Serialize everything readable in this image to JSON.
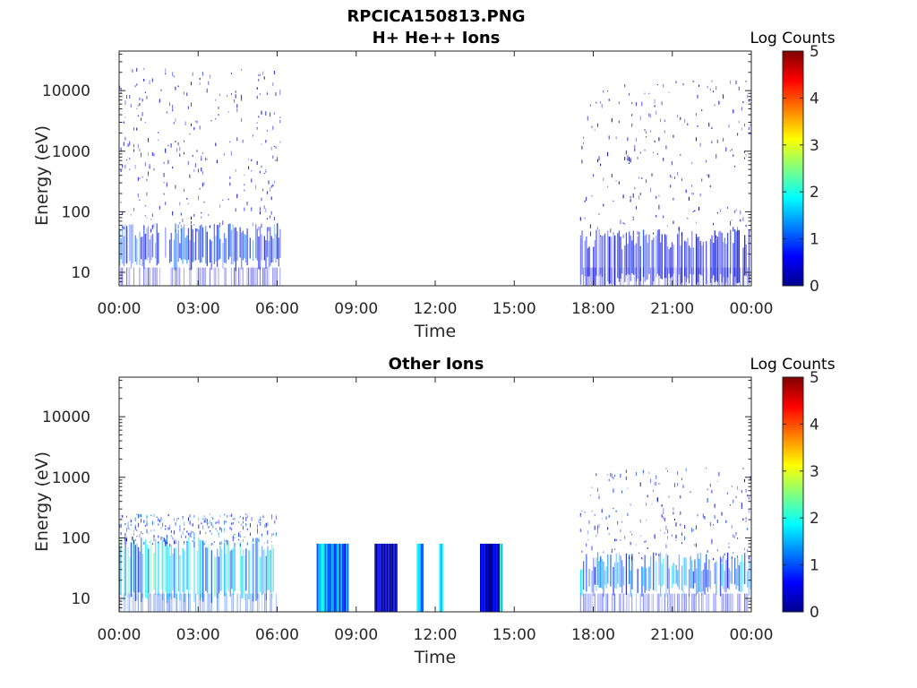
{
  "figure_title": "RPCICA150813.PNG",
  "chart_data": [
    {
      "type": "heatmap",
      "title": "H+ He++ Ions",
      "xlabel": "Time",
      "ylabel": "Energy (eV)",
      "x_ticks": [
        "00:00",
        "03:00",
        "06:00",
        "09:00",
        "12:00",
        "15:00",
        "18:00",
        "21:00",
        "00:00"
      ],
      "x_range_hours": [
        0,
        24
      ],
      "y_scale": "log",
      "y_ticks": [
        "10",
        "100",
        "1000",
        "10000"
      ],
      "y_tick_values": [
        10,
        100,
        1000,
        10000
      ],
      "ylim": [
        6,
        45000
      ],
      "colorbar": {
        "label": "Log Counts",
        "ticks": [
          "0",
          "1",
          "2",
          "3",
          "4",
          "5"
        ],
        "range": [
          0,
          5
        ],
        "colormap": "jet"
      },
      "segments": [
        {
          "start_h": 0.0,
          "end_h": 6.15,
          "emax": 25000,
          "level": 0.4,
          "density": 0.55,
          "low_band": [
            15,
            50
          ],
          "low_level": 0.9
        },
        {
          "start_h": 17.5,
          "end_h": 24.0,
          "emax": 15000,
          "level": 0.25,
          "density": 0.35,
          "low_band": [
            8,
            40
          ],
          "low_level": 0.6
        }
      ]
    },
    {
      "type": "heatmap",
      "title": "Other Ions",
      "xlabel": "Time",
      "ylabel": "Energy (eV)",
      "x_ticks": [
        "00:00",
        "03:00",
        "06:00",
        "09:00",
        "12:00",
        "15:00",
        "18:00",
        "21:00",
        "00:00"
      ],
      "x_range_hours": [
        0,
        24
      ],
      "y_scale": "log",
      "y_ticks": [
        "10",
        "100",
        "1000",
        "10000"
      ],
      "y_tick_values": [
        10,
        100,
        1000,
        10000
      ],
      "ylim": [
        6,
        45000
      ],
      "colorbar": {
        "label": "Log Counts",
        "ticks": [
          "0",
          "1",
          "2",
          "3",
          "4",
          "5"
        ],
        "range": [
          0,
          5
        ],
        "colormap": "jet"
      },
      "segments": [
        {
          "start_h": 0.0,
          "end_h": 6.0,
          "emax": 250,
          "level": 0.7,
          "density": 0.5,
          "low_band": [
            12,
            80
          ],
          "low_level": 1.6
        },
        {
          "start_h": 17.5,
          "end_h": 24.0,
          "emax": 1500,
          "level": 0.5,
          "density": 0.35,
          "low_band": [
            15,
            45
          ],
          "low_level": 1.2
        }
      ],
      "blocks": [
        {
          "start_h": 7.5,
          "end_h": 8.1,
          "emin": 6,
          "emax": 80,
          "level": 1.5
        },
        {
          "start_h": 8.1,
          "end_h": 8.7,
          "emin": 6,
          "emax": 80,
          "level": 1.0
        },
        {
          "start_h": 9.7,
          "end_h": 10.55,
          "emin": 6,
          "emax": 80,
          "level": 0.2
        },
        {
          "start_h": 11.3,
          "end_h": 11.55,
          "emin": 6,
          "emax": 80,
          "level": 1.3
        },
        {
          "start_h": 12.15,
          "end_h": 12.3,
          "emin": 6,
          "emax": 80,
          "level": 1.7
        },
        {
          "start_h": 13.7,
          "end_h": 14.45,
          "emin": 6,
          "emax": 80,
          "level": 0.4
        },
        {
          "start_h": 14.45,
          "end_h": 14.55,
          "emin": 6,
          "emax": 80,
          "level": 1.8
        }
      ]
    }
  ]
}
